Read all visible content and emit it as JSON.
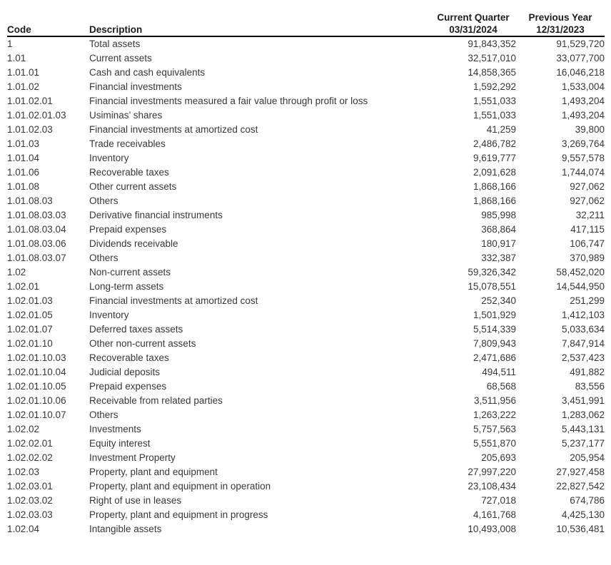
{
  "header": {
    "code": "Code",
    "description": "Description",
    "current_quarter_line1": "Current Quarter",
    "current_quarter_line2": "03/31/2024",
    "previous_year_line1": "Previous Year",
    "previous_year_line2": "12/31/2023"
  },
  "colors": {
    "background": "#ffffff",
    "body_text": "#383838",
    "header_text": "#1c1c1c",
    "header_rule": "#000000"
  },
  "rows": [
    {
      "code": "1",
      "description": "Total assets",
      "current_quarter": "91,843,352",
      "previous_year": "91,529,720"
    },
    {
      "code": "1.01",
      "description": "Current assets",
      "current_quarter": "32,517,010",
      "previous_year": "33,077,700"
    },
    {
      "code": "1.01.01",
      "description": "Cash and cash equivalents",
      "current_quarter": "14,858,365",
      "previous_year": "16,046,218"
    },
    {
      "code": "1.01.02",
      "description": "Financial investments",
      "current_quarter": "1,592,292",
      "previous_year": "1,533,004"
    },
    {
      "code": "1.01.02.01",
      "description": "Financial investments measured a fair value through profit or loss",
      "current_quarter": "1,551,033",
      "previous_year": "1,493,204"
    },
    {
      "code": "1.01.02.01.03",
      "description": "Usiminas’ shares",
      "current_quarter": "1,551,033",
      "previous_year": "1,493,204"
    },
    {
      "code": "1.01.02.03",
      "description": "Financial investments at amortized cost",
      "current_quarter": "41,259",
      "previous_year": "39,800"
    },
    {
      "code": "1.01.03",
      "description": "Trade receivables",
      "current_quarter": "2,486,782",
      "previous_year": "3,269,764"
    },
    {
      "code": "1.01.04",
      "description": "Inventory",
      "current_quarter": "9,619,777",
      "previous_year": "9,557,578"
    },
    {
      "code": "1.01.06",
      "description": "Recoverable taxes",
      "current_quarter": "2,091,628",
      "previous_year": "1,744,074"
    },
    {
      "code": "1.01.08",
      "description": "Other current assets",
      "current_quarter": "1,868,166",
      "previous_year": "927,062"
    },
    {
      "code": "1.01.08.03",
      "description": "Others",
      "current_quarter": "1,868,166",
      "previous_year": "927,062"
    },
    {
      "code": "1.01.08.03.03",
      "description": "Derivative financial instruments",
      "current_quarter": "985,998",
      "previous_year": "32,211"
    },
    {
      "code": "1.01.08.03.04",
      "description": "Prepaid expenses",
      "current_quarter": "368,864",
      "previous_year": "417,115"
    },
    {
      "code": "1.01.08.03.06",
      "description": "Dividends receivable",
      "current_quarter": "180,917",
      "previous_year": "106,747"
    },
    {
      "code": "1.01.08.03.07",
      "description": "Others",
      "current_quarter": "332,387",
      "previous_year": "370,989"
    },
    {
      "code": "1.02",
      "description": "Non-current assets",
      "current_quarter": "59,326,342",
      "previous_year": "58,452,020"
    },
    {
      "code": "1.02.01",
      "description": "Long-term assets",
      "current_quarter": "15,078,551",
      "previous_year": "14,544,950"
    },
    {
      "code": "1.02.01.03",
      "description": "Financial investments at amortized cost",
      "current_quarter": "252,340",
      "previous_year": "251,299"
    },
    {
      "code": "1.02.01.05",
      "description": "Inventory",
      "current_quarter": "1,501,929",
      "previous_year": "1,412,103"
    },
    {
      "code": "1.02.01.07",
      "description": "Deferred taxes assets",
      "current_quarter": "5,514,339",
      "previous_year": "5,033,634"
    },
    {
      "code": "1.02.01.10",
      "description": "Other non-current assets",
      "current_quarter": "7,809,943",
      "previous_year": "7,847,914"
    },
    {
      "code": "1.02.01.10.03",
      "description": "Recoverable taxes",
      "current_quarter": "2,471,686",
      "previous_year": "2,537,423"
    },
    {
      "code": "1.02.01.10.04",
      "description": "Judicial deposits",
      "current_quarter": "494,511",
      "previous_year": "491,882"
    },
    {
      "code": "1.02.01.10.05",
      "description": "Prepaid expenses",
      "current_quarter": "68,568",
      "previous_year": "83,556"
    },
    {
      "code": "1.02.01.10.06",
      "description": "Receivable from related parties",
      "current_quarter": "3,511,956",
      "previous_year": "3,451,991"
    },
    {
      "code": "1.02.01.10.07",
      "description": "Others",
      "current_quarter": "1,263,222",
      "previous_year": "1,283,062"
    },
    {
      "code": "1.02.02",
      "description": "Investments",
      "current_quarter": "5,757,563",
      "previous_year": "5,443,131"
    },
    {
      "code": "1.02.02.01",
      "description": "Equity interest",
      "current_quarter": "5,551,870",
      "previous_year": "5,237,177"
    },
    {
      "code": "1.02.02.02",
      "description": "Investment Property",
      "current_quarter": "205,693",
      "previous_year": "205,954"
    },
    {
      "code": "1.02.03",
      "description": "Property, plant and equipment",
      "current_quarter": "27,997,220",
      "previous_year": "27,927,458"
    },
    {
      "code": "1.02.03.01",
      "description": "Property, plant and equipment in operation",
      "current_quarter": "23,108,434",
      "previous_year": "22,827,542"
    },
    {
      "code": "1.02.03.02",
      "description": "Right of use in leases",
      "current_quarter": "727,018",
      "previous_year": "674,786"
    },
    {
      "code": "1.02.03.03",
      "description": "Property, plant and equipment in progress",
      "current_quarter": "4,161,768",
      "previous_year": "4,425,130"
    },
    {
      "code": "1.02.04",
      "description": "Intangible assets",
      "current_quarter": "10,493,008",
      "previous_year": "10,536,481"
    }
  ]
}
